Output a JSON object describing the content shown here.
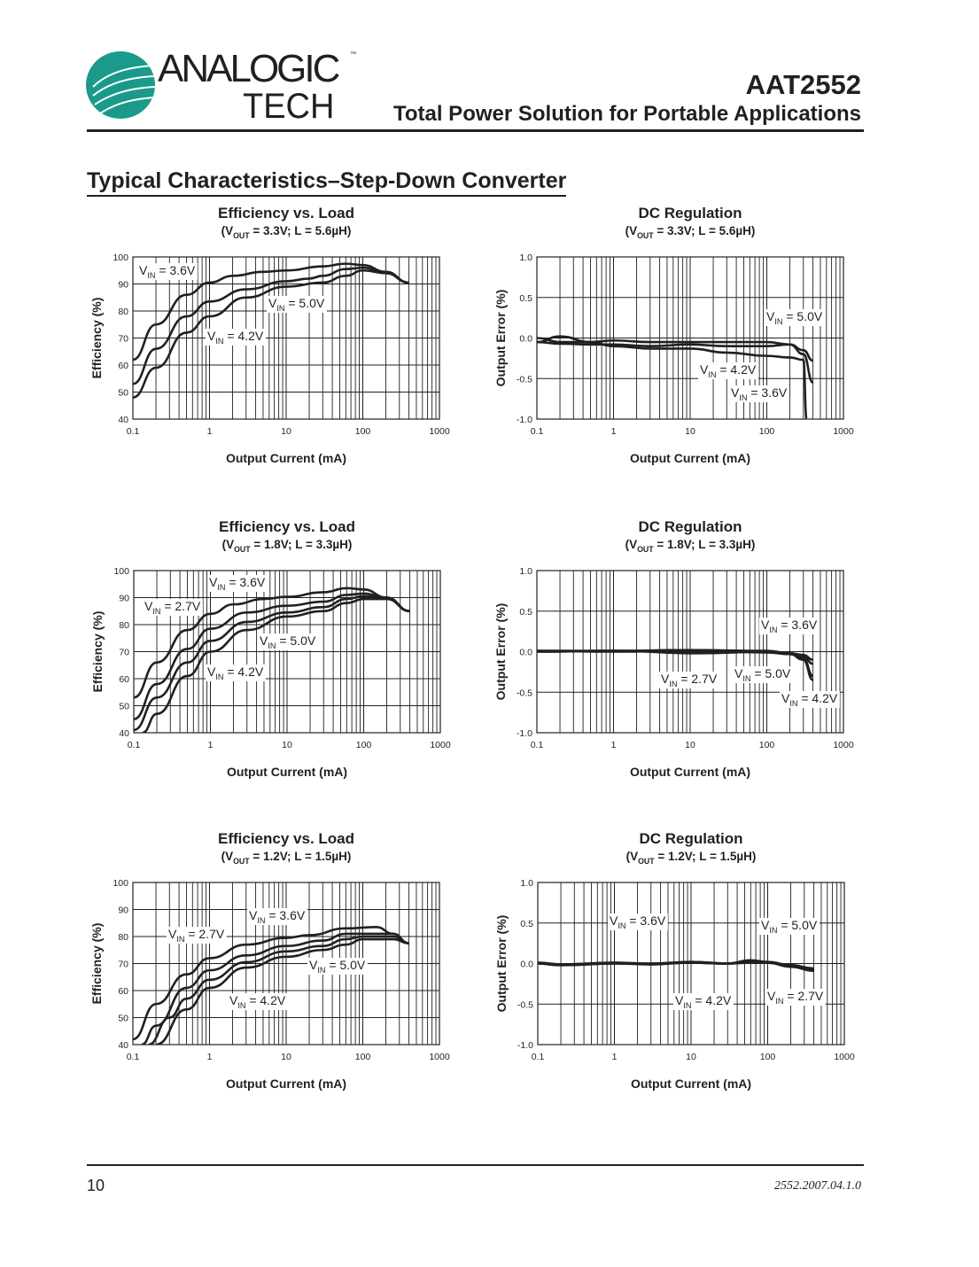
{
  "header": {
    "logo_text_line1": "ANALOGIC",
    "logo_text_line2": "TECH",
    "logo_tm": "™",
    "brand_color": "#1a9a8a",
    "part_number": "AAT2552",
    "doc_subtitle": "Total Power Solution for Portable Applications"
  },
  "section_title": "Typical Characteristics–Step-Down Converter",
  "footer": {
    "page_number": "10",
    "version": "2552.2007.04.1.0"
  },
  "chart_data": [
    {
      "type": "line",
      "title": "Efficiency vs. Load",
      "subtitle": "(VOUT = 3.3V; L = 5.6µH)",
      "xlabel": "Output Current (mA)",
      "ylabel": "Efficiency  (%)",
      "xscale": "log",
      "xlim": [
        0.1,
        1000
      ],
      "ylim": [
        40,
        100
      ],
      "xticks": [
        "0.1",
        "1",
        "10",
        "100",
        "1000"
      ],
      "yticks": [
        "40",
        "50",
        "60",
        "70",
        "80",
        "90",
        "100"
      ],
      "grid": true,
      "legend": "inline-labels",
      "series": [
        {
          "name": "VIN = 3.6V",
          "x": [
            0.1,
            0.2,
            0.5,
            1,
            2,
            5,
            10,
            30,
            60,
            100,
            200,
            400
          ],
          "y": [
            62,
            75,
            86,
            90.5,
            93,
            94.5,
            95,
            96.5,
            97.5,
            97,
            94.5,
            90.5
          ]
        },
        {
          "name": "VIN = 4.2V",
          "x": [
            0.1,
            0.2,
            0.5,
            1,
            3,
            10,
            20,
            30,
            60,
            100,
            200,
            400
          ],
          "y": [
            53,
            66,
            78,
            83.5,
            88,
            91,
            92,
            93,
            95.5,
            96,
            94,
            90.5
          ]
        },
        {
          "name": "VIN = 5.0V",
          "x": [
            0.1,
            0.2,
            0.5,
            1,
            3,
            10,
            30,
            60,
            100,
            200,
            400
          ],
          "y": [
            48,
            59,
            72,
            78,
            85,
            89,
            90.5,
            93,
            95,
            94,
            90.5
          ]
        }
      ]
    },
    {
      "type": "line",
      "title": "DC Regulation",
      "subtitle": "(VOUT = 3.3V; L = 5.6µH)",
      "xlabel": "Output Current (mA)",
      "ylabel": "Output Error (%)",
      "xscale": "log",
      "xlim": [
        0.1,
        1000
      ],
      "ylim": [
        -1.0,
        1.0
      ],
      "xticks": [
        "0.1",
        "1",
        "10",
        "100",
        "1000"
      ],
      "yticks": [
        "-1.0",
        "-0.5",
        "0.0",
        "0.5",
        "1.0"
      ],
      "grid": true,
      "legend": "inline-labels",
      "series": [
        {
          "name": "VIN = 5.0V",
          "x": [
            0.1,
            0.2,
            0.5,
            1,
            3,
            10,
            30,
            100,
            200,
            300,
            400
          ],
          "y": [
            0,
            -0.05,
            -0.05,
            -0.03,
            -0.05,
            -0.05,
            -0.05,
            -0.05,
            -0.08,
            -0.15,
            -0.28
          ]
        },
        {
          "name": "VIN = 4.2V",
          "x": [
            0.1,
            0.2,
            0.5,
            1,
            3,
            10,
            30,
            100,
            200,
            300,
            400
          ],
          "y": [
            -0.05,
            -0.07,
            -0.08,
            -0.08,
            -0.1,
            -0.08,
            -0.1,
            -0.1,
            -0.08,
            -0.2,
            -0.55
          ]
        },
        {
          "name": "VIN = 3.6V",
          "x": [
            0.1,
            0.2,
            0.5,
            1,
            3,
            10,
            30,
            100,
            200,
            300,
            330
          ],
          "y": [
            -0.05,
            0.02,
            -0.05,
            -0.1,
            -0.13,
            -0.13,
            -0.18,
            -0.22,
            -0.24,
            -0.27,
            -1.0
          ]
        }
      ]
    },
    {
      "type": "line",
      "title": "Efficiency vs. Load",
      "subtitle": "(VOUT = 1.8V; L = 3.3µH)",
      "xlabel": "Output Current (mA)",
      "ylabel": "Efficiency  (%)",
      "xscale": "log",
      "xlim": [
        0.1,
        1000
      ],
      "ylim": [
        40,
        100
      ],
      "xticks": [
        "0.1",
        "1",
        "10",
        "100",
        "1000"
      ],
      "yticks": [
        "40",
        "50",
        "60",
        "70",
        "80",
        "90",
        "100"
      ],
      "grid": true,
      "legend": "inline-labels",
      "series": [
        {
          "name": "VIN = 2.7V",
          "x": [
            0.1,
            0.2,
            0.5,
            1,
            2,
            5,
            10,
            30,
            60,
            100,
            200,
            400
          ],
          "y": [
            53,
            66,
            78,
            84,
            87.5,
            89.5,
            90.3,
            92,
            93.5,
            93,
            90,
            85
          ]
        },
        {
          "name": "VIN = 3.6V",
          "x": [
            0.1,
            0.2,
            0.5,
            1,
            3,
            10,
            30,
            60,
            100,
            200,
            400
          ],
          "y": [
            45,
            58,
            71,
            78.5,
            84.5,
            87,
            88.5,
            91,
            91.5,
            90,
            85
          ]
        },
        {
          "name": "VIN = 4.2V",
          "x": [
            0.1,
            0.2,
            0.5,
            1,
            3,
            10,
            30,
            60,
            100,
            200,
            400
          ],
          "y": [
            41,
            53,
            66,
            74,
            81,
            84.5,
            86.5,
            89.5,
            90.5,
            90,
            85
          ]
        },
        {
          "name": "VIN = 5.0V",
          "x": [
            0.13,
            0.2,
            0.5,
            1,
            3,
            10,
            30,
            60,
            100,
            200,
            400
          ],
          "y": [
            40,
            47,
            61,
            70,
            78,
            83,
            85,
            88,
            89.5,
            89.5,
            85
          ]
        }
      ]
    },
    {
      "type": "line",
      "title": "DC Regulation",
      "subtitle": "(VOUT = 1.8V; L = 3.3µH)",
      "xlabel": "Output Current (mA)",
      "ylabel": "Output Error (%)",
      "xscale": "log",
      "xlim": [
        0.1,
        1000
      ],
      "ylim": [
        -1.0,
        1.0
      ],
      "xticks": [
        "0.1",
        "1",
        "10",
        "100",
        "1000"
      ],
      "yticks": [
        "-1.0",
        "-0.5",
        "0.0",
        "0.5",
        "1.0"
      ],
      "grid": true,
      "legend": "inline-labels",
      "series": [
        {
          "name": "VIN = 3.6V",
          "x": [
            0.1,
            1,
            10,
            100,
            200,
            300,
            400
          ],
          "y": [
            0.01,
            0.01,
            0.02,
            0.01,
            -0.02,
            -0.04,
            -0.1
          ]
        },
        {
          "name": "VIN = 2.7V",
          "x": [
            0.1,
            1,
            13,
            100,
            200,
            300,
            400
          ],
          "y": [
            0,
            0.01,
            -0.02,
            0,
            -0.03,
            -0.1,
            -0.35
          ]
        },
        {
          "name": "VIN = 5.0V",
          "x": [
            0.1,
            1,
            10,
            100,
            200,
            300,
            400
          ],
          "y": [
            0.01,
            0,
            0.01,
            0,
            -0.03,
            -0.06,
            -0.15
          ]
        },
        {
          "name": "VIN = 4.2V",
          "x": [
            0.1,
            1,
            10,
            100,
            200,
            300,
            400
          ],
          "y": [
            0,
            0.01,
            0.01,
            -0.01,
            -0.03,
            -0.08,
            -0.3
          ]
        }
      ]
    },
    {
      "type": "line",
      "title": "Efficiency vs. Load",
      "subtitle": "(VOUT = 1.2V; L = 1.5µH)",
      "xlabel": "Output Current (mA)",
      "ylabel": "Efficiency  (%)",
      "xscale": "log",
      "xlim": [
        0.1,
        1000
      ],
      "ylim": [
        40,
        100
      ],
      "xticks": [
        "0.1",
        "1",
        "10",
        "100",
        "1000"
      ],
      "yticks": [
        "40",
        "50",
        "60",
        "70",
        "80",
        "90",
        "100"
      ],
      "grid": true,
      "legend": "inline-labels",
      "series": [
        {
          "name": "VIN = 2.7V",
          "x": [
            0.1,
            0.2,
            0.5,
            1,
            3,
            10,
            20,
            60,
            150,
            250,
            400
          ],
          "y": [
            42,
            55,
            66,
            72,
            77,
            79.5,
            80.5,
            83,
            83.5,
            81,
            77.5
          ]
        },
        {
          "name": "VIN = 3.6V",
          "x": [
            0.13,
            0.2,
            0.5,
            1,
            3,
            10,
            30,
            60,
            100,
            250,
            400
          ],
          "y": [
            40,
            47,
            61,
            67.5,
            73,
            76.5,
            78.5,
            81,
            81,
            81,
            77.5
          ]
        },
        {
          "name": "VIN = 4.2V",
          "x": [
            0.16,
            0.3,
            0.5,
            1,
            3,
            10,
            30,
            60,
            100,
            250,
            400
          ],
          "y": [
            40,
            50,
            57,
            64,
            70.5,
            74.5,
            76.5,
            79,
            80,
            80,
            77.5
          ]
        },
        {
          "name": "VIN = 5.0V",
          "x": [
            0.2,
            0.5,
            1,
            3,
            10,
            30,
            60,
            100,
            250,
            400
          ],
          "y": [
            40,
            53,
            61,
            68.5,
            72.5,
            75,
            77,
            79,
            79,
            77.5
          ]
        }
      ]
    },
    {
      "type": "line",
      "title": "DC Regulation",
      "subtitle": "(VOUT = 1.2V; L = 1.5µH)",
      "xlabel": "Output Current (mA)",
      "ylabel": "Output Error (%)",
      "xscale": "log",
      "xlim": [
        0.1,
        1000
      ],
      "ylim": [
        -1.0,
        1.0
      ],
      "xticks": [
        "0.1",
        "1",
        "10",
        "100",
        "1000"
      ],
      "yticks": [
        "-1.0",
        "-0.5",
        "0.0",
        "0.5",
        "1.0"
      ],
      "grid": true,
      "legend": "inline-labels",
      "series": [
        {
          "name": "VIN = 3.6V",
          "x": [
            0.1,
            0.2,
            1,
            3,
            10,
            30,
            60,
            100,
            200,
            400
          ],
          "y": [
            0.01,
            -0.01,
            0.01,
            -0.01,
            0.01,
            0,
            0.03,
            0.01,
            -0.02,
            -0.06
          ]
        },
        {
          "name": "VIN = 5.0V",
          "x": [
            0.1,
            0.2,
            1,
            3,
            10,
            30,
            60,
            100,
            200,
            400
          ],
          "y": [
            0,
            -0.02,
            0,
            0,
            0.02,
            0,
            0.04,
            0.02,
            -0.02,
            -0.08
          ]
        },
        {
          "name": "VIN = 4.2V",
          "x": [
            0.1,
            0.2,
            1,
            3,
            10,
            30,
            60,
            100,
            200,
            400
          ],
          "y": [
            0.01,
            -0.01,
            0.01,
            0,
            0.01,
            0,
            0.02,
            0.01,
            -0.03,
            -0.07
          ]
        },
        {
          "name": "VIN = 2.7V",
          "x": [
            0.1,
            0.2,
            1,
            3,
            10,
            30,
            60,
            100,
            200,
            400
          ],
          "y": [
            0,
            -0.02,
            0,
            -0.01,
            0.02,
            0,
            0.01,
            0.01,
            -0.04,
            -0.09
          ]
        }
      ]
    }
  ]
}
